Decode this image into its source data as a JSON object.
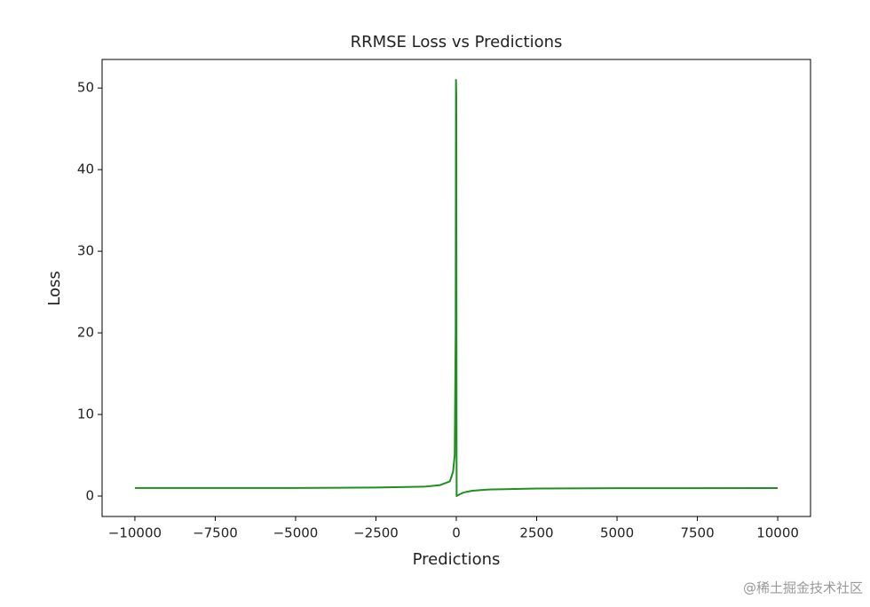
{
  "chart_data": {
    "type": "line",
    "title": "RRMSE Loss vs Predictions",
    "x_label": "Predictions",
    "y_label": "Loss",
    "x": [
      -10000,
      -5000,
      -2500,
      -1000,
      -500,
      -200,
      -100,
      -50,
      -20,
      -10,
      0,
      10,
      50,
      100,
      200,
      300,
      500,
      1000,
      2500,
      5000,
      10000
    ],
    "series": [
      {
        "name": "RRMSE Loss",
        "color": "#1f8f1f",
        "values": [
          1.0,
          1.0,
          1.05,
          1.15,
          1.35,
          1.8,
          3,
          5,
          20,
          51,
          49,
          0,
          0.1,
          0.2,
          0.4,
          0.5,
          0.65,
          0.8,
          0.92,
          0.96,
          0.98
        ]
      }
    ],
    "xlim": [
      -11020,
      11020
    ],
    "ylim": [
      -2.5,
      53.5
    ],
    "xticks": [
      {
        "value": -10000,
        "label": "−10000"
      },
      {
        "value": -7500,
        "label": "−7500"
      },
      {
        "value": -5000,
        "label": "−5000"
      },
      {
        "value": -2500,
        "label": "−2500"
      },
      0,
      2500,
      5000,
      7500,
      10000
    ],
    "yticks": [
      0,
      10,
      20,
      30,
      40,
      50
    ],
    "grid": false,
    "watermark": "@稀土掘金技术社区"
  }
}
